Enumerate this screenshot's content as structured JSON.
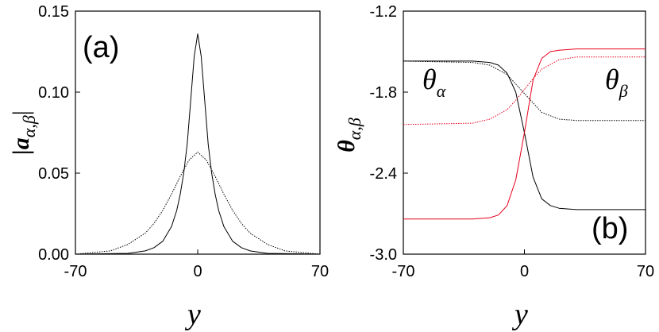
{
  "chart_data": [
    {
      "type": "line",
      "panel_label": "(a)",
      "xlabel": "y",
      "ylabel": "|a",
      "ylabel_sub": "α,β",
      "ylabel_suffix": "|",
      "xlim": [
        -70,
        70
      ],
      "ylim": [
        0.0,
        0.15
      ],
      "xticks": [
        -70,
        0,
        70
      ],
      "xtick_labels": [
        "-70",
        "0",
        "70"
      ],
      "yticks": [
        0.0,
        0.05,
        0.1,
        0.15
      ],
      "ytick_labels": [
        "0.00",
        "0.05",
        "0.10",
        "0.15"
      ],
      "grid": false,
      "series": [
        {
          "color": "#000000",
          "dash": "solid",
          "x": [
            -70,
            -40,
            -30,
            -25,
            -20,
            -15,
            -12,
            -10,
            -8,
            -6,
            -4,
            -2,
            0,
            2,
            4,
            6,
            8,
            10,
            12,
            15,
            20,
            25,
            30,
            40,
            70
          ],
          "y": [
            0.0,
            0.0005,
            0.002,
            0.004,
            0.008,
            0.017,
            0.027,
            0.037,
            0.05,
            0.068,
            0.095,
            0.122,
            0.136,
            0.122,
            0.095,
            0.068,
            0.05,
            0.037,
            0.027,
            0.017,
            0.008,
            0.004,
            0.002,
            0.0005,
            0.0
          ]
        },
        {
          "color": "#000000",
          "dash": "dotted",
          "x": [
            -70,
            -50,
            -40,
            -30,
            -25,
            -20,
            -15,
            -10,
            -5,
            0,
            5,
            10,
            15,
            20,
            25,
            30,
            40,
            50,
            70
          ],
          "y": [
            0.0,
            0.002,
            0.006,
            0.013,
            0.019,
            0.027,
            0.037,
            0.048,
            0.058,
            0.063,
            0.058,
            0.048,
            0.037,
            0.027,
            0.019,
            0.013,
            0.006,
            0.002,
            0.0
          ]
        }
      ]
    },
    {
      "type": "line",
      "panel_label": "(b)",
      "xlabel": "y",
      "ylabel": "θ",
      "ylabel_sub": "α,β",
      "xlim": [
        -70,
        70
      ],
      "ylim": [
        -3.0,
        -1.2
      ],
      "xticks": [
        -70,
        0,
        70
      ],
      "xtick_labels": [
        "-70",
        "0",
        "70"
      ],
      "yticks": [
        -3.0,
        -2.4,
        -1.8,
        -1.2
      ],
      "ytick_labels": [
        "-3.0",
        "-2.4",
        "-1.8",
        "-1.2"
      ],
      "grid": false,
      "annotations": [
        {
          "text": "θ",
          "sub": "α"
        },
        {
          "text": "θ",
          "sub": "β"
        }
      ],
      "series": [
        {
          "color": "#000000",
          "dash": "solid",
          "x": [
            -70,
            -30,
            -20,
            -15,
            -10,
            -5,
            0,
            5,
            10,
            15,
            20,
            30,
            70
          ],
          "y": [
            -1.57,
            -1.57,
            -1.58,
            -1.6,
            -1.66,
            -1.8,
            -2.1,
            -2.43,
            -2.59,
            -2.64,
            -2.66,
            -2.67,
            -2.67
          ]
        },
        {
          "color": "#000000",
          "dash": "dotted",
          "x": [
            -70,
            -30,
            -20,
            -10,
            -5,
            0,
            5,
            10,
            20,
            30,
            70
          ],
          "y": [
            -1.57,
            -1.58,
            -1.6,
            -1.67,
            -1.74,
            -1.81,
            -1.88,
            -1.95,
            -2.0,
            -2.01,
            -2.01
          ]
        },
        {
          "color": "#e8001c",
          "dash": "solid",
          "x": [
            -70,
            -30,
            -20,
            -15,
            -10,
            -5,
            0,
            5,
            10,
            15,
            20,
            30,
            70
          ],
          "y": [
            -2.74,
            -2.74,
            -2.73,
            -2.71,
            -2.64,
            -2.45,
            -2.1,
            -1.71,
            -1.55,
            -1.5,
            -1.49,
            -1.48,
            -1.48
          ]
        },
        {
          "color": "#e8001c",
          "dash": "dotted",
          "x": [
            -70,
            -30,
            -20,
            -10,
            -5,
            0,
            5,
            10,
            20,
            30,
            70
          ],
          "y": [
            -2.04,
            -2.03,
            -2.0,
            -1.93,
            -1.86,
            -1.78,
            -1.7,
            -1.63,
            -1.56,
            -1.54,
            -1.54
          ]
        }
      ]
    }
  ]
}
